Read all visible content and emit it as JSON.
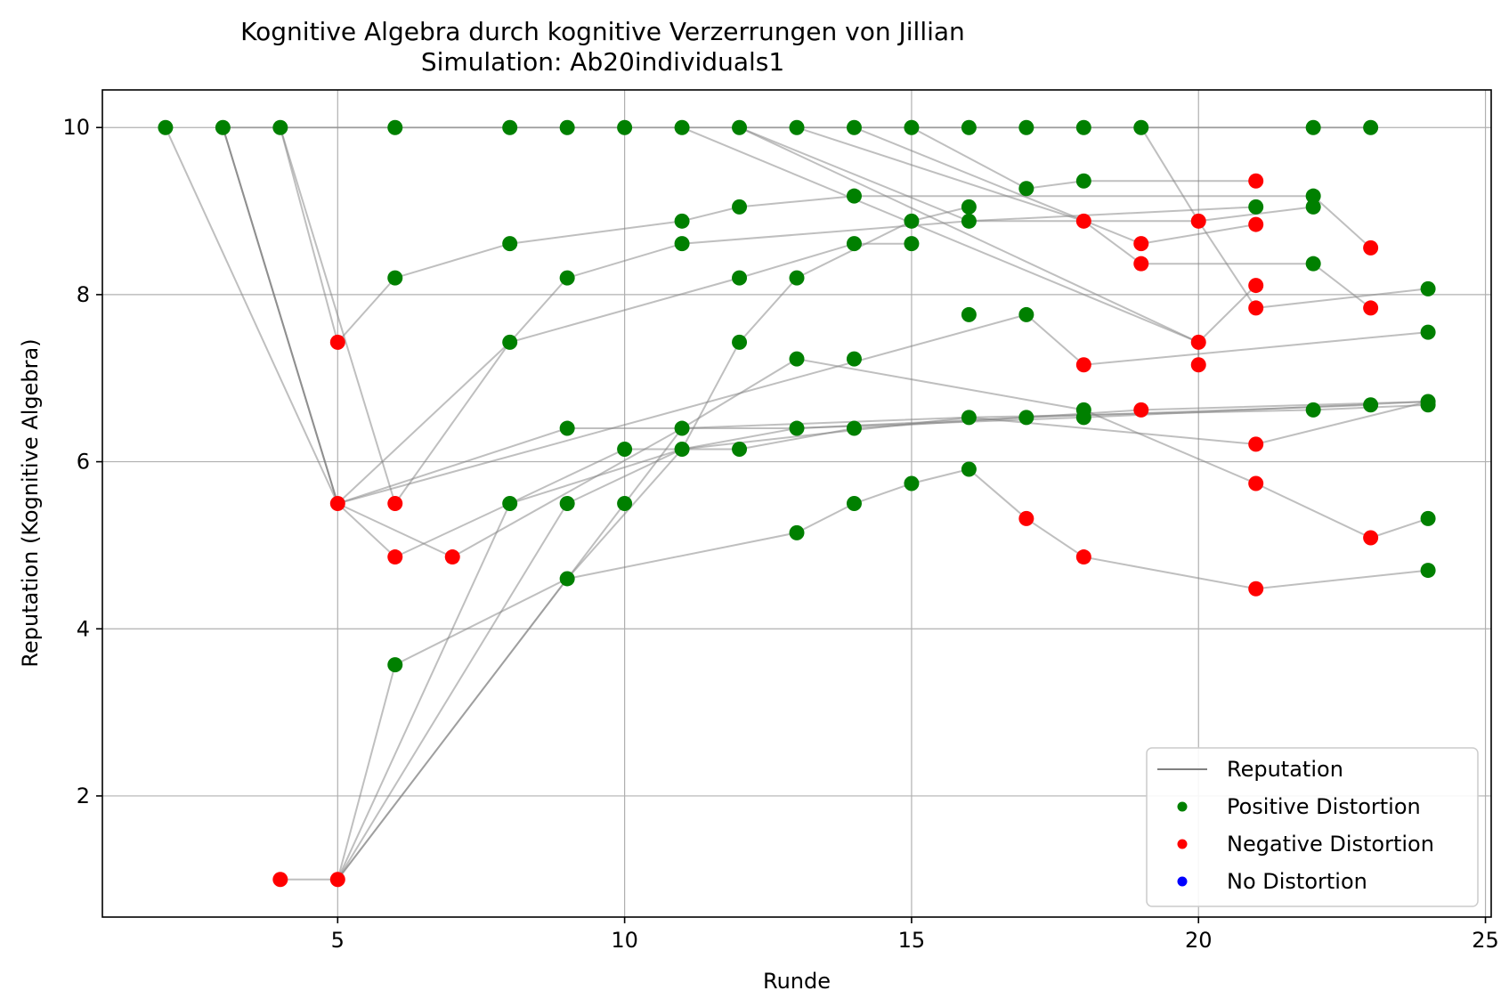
{
  "chart_data": {
    "type": "scatter",
    "title": "Kognitive Algebra durch kognitive Verzerrungen von Jillian",
    "subtitle": "Simulation: Ab20individuals1",
    "xlabel": "Runde",
    "ylabel": "Reputation (Kognitive Algebra)",
    "xlim": [
      0.9,
      25.1
    ],
    "ylim": [
      0.55,
      10.45
    ],
    "xticks": [
      5,
      10,
      15,
      20,
      25
    ],
    "yticks": [
      2,
      4,
      6,
      8,
      10
    ],
    "grid": true,
    "legend_position": "lower right",
    "legend": [
      {
        "label": "Reputation",
        "kind": "line",
        "color": "#808080"
      },
      {
        "label": "Positive Distortion",
        "kind": "marker",
        "color": "#008000"
      },
      {
        "label": "Negative Distortion",
        "kind": "marker",
        "color": "#ff0000"
      },
      {
        "label": "No Distortion",
        "kind": "marker",
        "color": "#0000ff"
      }
    ],
    "colors": {
      "positive": "#008000",
      "negative": "#ff0000",
      "none": "#0000ff",
      "line": "#808080"
    },
    "trajectories": [
      [
        [
          2,
          10
        ],
        [
          5,
          5.5
        ],
        [
          7,
          4.86
        ],
        [
          11,
          6.4
        ],
        [
          13,
          7.23
        ],
        [
          18,
          6.62
        ],
        [
          21,
          5.74
        ],
        [
          23,
          5.09
        ],
        [
          24,
          5.32
        ]
      ],
      [
        [
          3,
          10
        ],
        [
          5,
          5.5
        ],
        [
          9,
          6.4
        ],
        [
          11,
          6.4
        ],
        [
          16,
          6.53
        ],
        [
          21,
          6.21
        ],
        [
          24,
          6.72
        ]
      ],
      [
        [
          3,
          10
        ],
        [
          5,
          5.5
        ],
        [
          6,
          4.86
        ],
        [
          8,
          5.5
        ],
        [
          11,
          6.15
        ],
        [
          13,
          6.4
        ],
        [
          18,
          6.53
        ],
        [
          24,
          6.72
        ]
      ],
      [
        [
          3,
          10
        ],
        [
          5,
          5.5
        ],
        [
          17,
          7.76
        ],
        [
          18,
          7.16
        ],
        [
          24,
          7.55
        ]
      ],
      [
        [
          4,
          10
        ],
        [
          5,
          7.43
        ],
        [
          6,
          8.2
        ],
        [
          8,
          8.61
        ],
        [
          11,
          8.88
        ],
        [
          12,
          9.05
        ],
        [
          14,
          9.18
        ],
        [
          22,
          9.18
        ],
        [
          23,
          8.56
        ]
      ],
      [
        [
          4,
          10
        ],
        [
          6,
          5.5
        ],
        [
          8,
          7.43
        ],
        [
          12,
          8.2
        ],
        [
          14,
          8.61
        ],
        [
          15,
          8.61
        ]
      ],
      [
        [
          4,
          1
        ],
        [
          5,
          1
        ],
        [
          6,
          3.57
        ],
        [
          9,
          4.6
        ],
        [
          13,
          5.15
        ],
        [
          14,
          5.5
        ],
        [
          15,
          5.74
        ],
        [
          16,
          5.91
        ],
        [
          17,
          5.32
        ],
        [
          18,
          4.86
        ],
        [
          21,
          4.48
        ],
        [
          24,
          4.7
        ]
      ],
      [
        [
          5,
          1
        ],
        [
          8,
          5.5
        ],
        [
          10,
          6.15
        ],
        [
          12,
          6.15
        ],
        [
          14,
          6.4
        ],
        [
          19,
          6.62
        ],
        [
          24,
          6.72
        ]
      ],
      [
        [
          5,
          1
        ],
        [
          9,
          5.5
        ],
        [
          11,
          6.15
        ],
        [
          16,
          6.53
        ],
        [
          22,
          6.62
        ],
        [
          24,
          6.68
        ]
      ],
      [
        [
          5,
          1
        ],
        [
          10,
          5.5
        ],
        [
          11,
          6.4
        ],
        [
          13,
          6.4
        ],
        [
          17,
          6.53
        ],
        [
          23,
          6.68
        ]
      ],
      [
        [
          5,
          1
        ],
        [
          9,
          4.6
        ],
        [
          11,
          6.15
        ],
        [
          12,
          7.43
        ],
        [
          13,
          8.2
        ],
        [
          15,
          8.88
        ],
        [
          16,
          9.05
        ]
      ],
      [
        [
          5,
          5.5
        ],
        [
          8,
          7.43
        ],
        [
          9,
          8.2
        ],
        [
          11,
          8.61
        ],
        [
          16,
          8.88
        ],
        [
          21,
          9.05
        ]
      ],
      [
        [
          12,
          10
        ],
        [
          16,
          8.88
        ],
        [
          18,
          8.88
        ],
        [
          20,
          8.88
        ],
        [
          21,
          7.84
        ],
        [
          24,
          8.07
        ]
      ],
      [
        [
          12,
          10
        ],
        [
          20,
          7.43
        ],
        [
          20,
          7.16
        ]
      ],
      [
        [
          11,
          10
        ],
        [
          20,
          7.43
        ],
        [
          21,
          8.11
        ]
      ],
      [
        [
          15,
          10
        ],
        [
          17,
          9.27
        ],
        [
          18,
          9.36
        ],
        [
          21,
          9.36
        ]
      ],
      [
        [
          14,
          10
        ],
        [
          19,
          8.61
        ],
        [
          21,
          8.84
        ]
      ],
      [
        [
          13,
          10
        ],
        [
          18,
          8.88
        ],
        [
          19,
          8.37
        ],
        [
          22,
          8.37
        ],
        [
          23,
          7.84
        ]
      ],
      [
        [
          19,
          10
        ],
        [
          20,
          8.88
        ],
        [
          22,
          9.05
        ]
      ],
      [
        [
          3,
          10
        ],
        [
          23,
          10
        ]
      ]
    ],
    "points": [
      {
        "x": 2,
        "y": 10,
        "d": "positive"
      },
      {
        "x": 3,
        "y": 10,
        "d": "positive"
      },
      {
        "x": 4,
        "y": 10,
        "d": "positive"
      },
      {
        "x": 6,
        "y": 10,
        "d": "positive"
      },
      {
        "x": 8,
        "y": 10,
        "d": "positive"
      },
      {
        "x": 9,
        "y": 10,
        "d": "positive"
      },
      {
        "x": 10,
        "y": 10,
        "d": "positive"
      },
      {
        "x": 11,
        "y": 10,
        "d": "positive"
      },
      {
        "x": 12,
        "y": 10,
        "d": "positive"
      },
      {
        "x": 13,
        "y": 10,
        "d": "positive"
      },
      {
        "x": 14,
        "y": 10,
        "d": "positive"
      },
      {
        "x": 15,
        "y": 10,
        "d": "positive"
      },
      {
        "x": 16,
        "y": 10,
        "d": "positive"
      },
      {
        "x": 17,
        "y": 10,
        "d": "positive"
      },
      {
        "x": 18,
        "y": 10,
        "d": "positive"
      },
      {
        "x": 19,
        "y": 10,
        "d": "positive"
      },
      {
        "x": 22,
        "y": 10,
        "d": "positive"
      },
      {
        "x": 23,
        "y": 10,
        "d": "positive"
      },
      {
        "x": 5,
        "y": 7.43,
        "d": "negative"
      },
      {
        "x": 5,
        "y": 5.5,
        "d": "negative"
      },
      {
        "x": 4,
        "y": 1,
        "d": "negative"
      },
      {
        "x": 5,
        "y": 1,
        "d": "negative"
      },
      {
        "x": 6,
        "y": 5.5,
        "d": "negative"
      },
      {
        "x": 6,
        "y": 4.86,
        "d": "negative"
      },
      {
        "x": 7,
        "y": 4.86,
        "d": "negative"
      },
      {
        "x": 6,
        "y": 8.2,
        "d": "positive"
      },
      {
        "x": 6,
        "y": 3.57,
        "d": "positive"
      },
      {
        "x": 8,
        "y": 8.61,
        "d": "positive"
      },
      {
        "x": 8,
        "y": 7.43,
        "d": "positive"
      },
      {
        "x": 8,
        "y": 5.5,
        "d": "positive"
      },
      {
        "x": 9,
        "y": 8.2,
        "d": "positive"
      },
      {
        "x": 9,
        "y": 6.4,
        "d": "positive"
      },
      {
        "x": 9,
        "y": 5.5,
        "d": "positive"
      },
      {
        "x": 9,
        "y": 4.6,
        "d": "positive"
      },
      {
        "x": 10,
        "y": 6.15,
        "d": "positive"
      },
      {
        "x": 10,
        "y": 5.5,
        "d": "positive"
      },
      {
        "x": 11,
        "y": 8.88,
        "d": "positive"
      },
      {
        "x": 11,
        "y": 8.61,
        "d": "positive"
      },
      {
        "x": 11,
        "y": 6.4,
        "d": "positive"
      },
      {
        "x": 11,
        "y": 6.15,
        "d": "positive"
      },
      {
        "x": 12,
        "y": 9.05,
        "d": "positive"
      },
      {
        "x": 12,
        "y": 8.2,
        "d": "positive"
      },
      {
        "x": 12,
        "y": 7.43,
        "d": "positive"
      },
      {
        "x": 12,
        "y": 6.15,
        "d": "positive"
      },
      {
        "x": 13,
        "y": 8.2,
        "d": "positive"
      },
      {
        "x": 13,
        "y": 7.23,
        "d": "positive"
      },
      {
        "x": 13,
        "y": 6.4,
        "d": "positive"
      },
      {
        "x": 13,
        "y": 5.15,
        "d": "positive"
      },
      {
        "x": 14,
        "y": 9.18,
        "d": "positive"
      },
      {
        "x": 14,
        "y": 8.61,
        "d": "positive"
      },
      {
        "x": 14,
        "y": 7.23,
        "d": "positive"
      },
      {
        "x": 14,
        "y": 6.4,
        "d": "positive"
      },
      {
        "x": 14,
        "y": 5.5,
        "d": "positive"
      },
      {
        "x": 15,
        "y": 8.88,
        "d": "positive"
      },
      {
        "x": 15,
        "y": 8.61,
        "d": "positive"
      },
      {
        "x": 15,
        "y": 5.74,
        "d": "positive"
      },
      {
        "x": 16,
        "y": 9.05,
        "d": "positive"
      },
      {
        "x": 16,
        "y": 8.88,
        "d": "positive"
      },
      {
        "x": 16,
        "y": 7.76,
        "d": "positive"
      },
      {
        "x": 16,
        "y": 6.53,
        "d": "positive"
      },
      {
        "x": 16,
        "y": 5.91,
        "d": "positive"
      },
      {
        "x": 17,
        "y": 9.27,
        "d": "positive"
      },
      {
        "x": 17,
        "y": 7.76,
        "d": "positive"
      },
      {
        "x": 17,
        "y": 6.53,
        "d": "positive"
      },
      {
        "x": 17,
        "y": 5.32,
        "d": "negative"
      },
      {
        "x": 18,
        "y": 9.36,
        "d": "positive"
      },
      {
        "x": 18,
        "y": 8.88,
        "d": "negative"
      },
      {
        "x": 18,
        "y": 7.16,
        "d": "negative"
      },
      {
        "x": 18,
        "y": 6.62,
        "d": "positive"
      },
      {
        "x": 18,
        "y": 6.53,
        "d": "positive"
      },
      {
        "x": 18,
        "y": 4.86,
        "d": "negative"
      },
      {
        "x": 19,
        "y": 8.61,
        "d": "negative"
      },
      {
        "x": 19,
        "y": 8.37,
        "d": "negative"
      },
      {
        "x": 19,
        "y": 6.62,
        "d": "negative"
      },
      {
        "x": 20,
        "y": 8.88,
        "d": "negative"
      },
      {
        "x": 20,
        "y": 7.43,
        "d": "negative"
      },
      {
        "x": 20,
        "y": 7.16,
        "d": "negative"
      },
      {
        "x": 21,
        "y": 9.36,
        "d": "negative"
      },
      {
        "x": 21,
        "y": 9.05,
        "d": "positive"
      },
      {
        "x": 21,
        "y": 8.84,
        "d": "negative"
      },
      {
        "x": 21,
        "y": 8.11,
        "d": "negative"
      },
      {
        "x": 21,
        "y": 7.84,
        "d": "negative"
      },
      {
        "x": 21,
        "y": 6.21,
        "d": "negative"
      },
      {
        "x": 21,
        "y": 5.74,
        "d": "negative"
      },
      {
        "x": 21,
        "y": 4.48,
        "d": "negative"
      },
      {
        "x": 22,
        "y": 9.18,
        "d": "positive"
      },
      {
        "x": 22,
        "y": 9.05,
        "d": "positive"
      },
      {
        "x": 22,
        "y": 8.37,
        "d": "positive"
      },
      {
        "x": 22,
        "y": 6.62,
        "d": "positive"
      },
      {
        "x": 23,
        "y": 8.56,
        "d": "negative"
      },
      {
        "x": 23,
        "y": 7.84,
        "d": "negative"
      },
      {
        "x": 23,
        "y": 6.68,
        "d": "positive"
      },
      {
        "x": 23,
        "y": 5.09,
        "d": "negative"
      },
      {
        "x": 24,
        "y": 8.07,
        "d": "positive"
      },
      {
        "x": 24,
        "y": 7.55,
        "d": "positive"
      },
      {
        "x": 24,
        "y": 6.72,
        "d": "positive"
      },
      {
        "x": 24,
        "y": 6.68,
        "d": "positive"
      },
      {
        "x": 24,
        "y": 5.32,
        "d": "positive"
      },
      {
        "x": 24,
        "y": 4.7,
        "d": "positive"
      }
    ]
  }
}
